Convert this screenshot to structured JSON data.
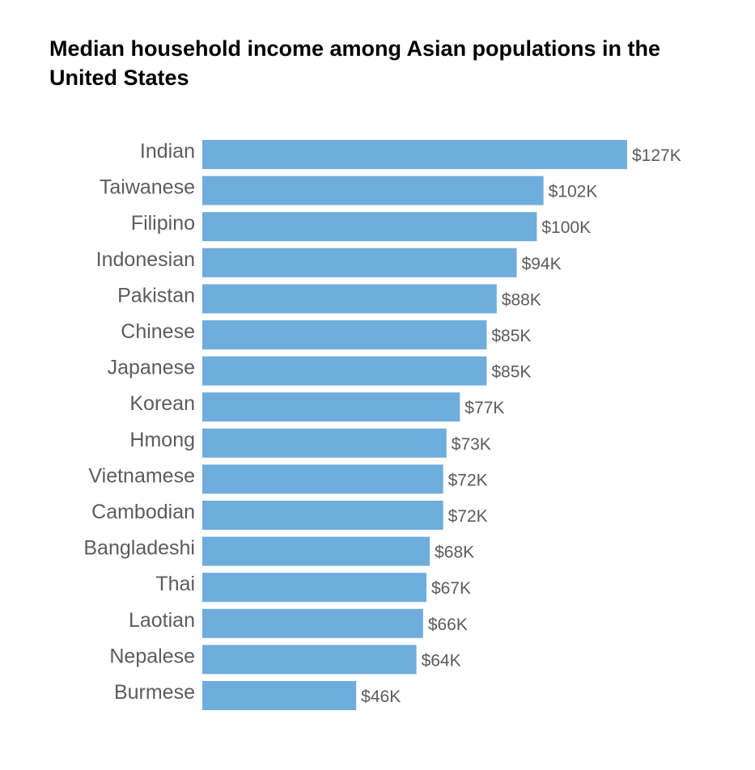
{
  "chart_data": {
    "type": "bar",
    "orientation": "horizontal",
    "title": "Median household income among Asian populations in the United States",
    "xlabel": "",
    "ylabel": "",
    "grid": false,
    "legend": "none",
    "bar_color": "#6faddc",
    "label_color": "#5c5c5c",
    "xlim": [
      0,
      127
    ],
    "categories": [
      "Indian",
      "Taiwanese",
      "Filipino",
      "Indonesian",
      "Pakistan",
      "Chinese",
      "Japanese",
      "Korean",
      "Hmong",
      "Vietnamese",
      "Cambodian",
      "Bangladeshi",
      "Thai",
      "Laotian",
      "Nepalese",
      "Burmese"
    ],
    "values": [
      127,
      102,
      100,
      94,
      88,
      85,
      85,
      77,
      73,
      72,
      72,
      68,
      67,
      66,
      64,
      46
    ],
    "value_labels": [
      "$127K",
      "$102K",
      "$100K",
      "$94K",
      "$88K",
      "$85K",
      "$85K",
      "$77K",
      "$73K",
      "$72K",
      "$72K",
      "$68K",
      "$67K",
      "$66K",
      "$64K",
      "$46K"
    ]
  }
}
